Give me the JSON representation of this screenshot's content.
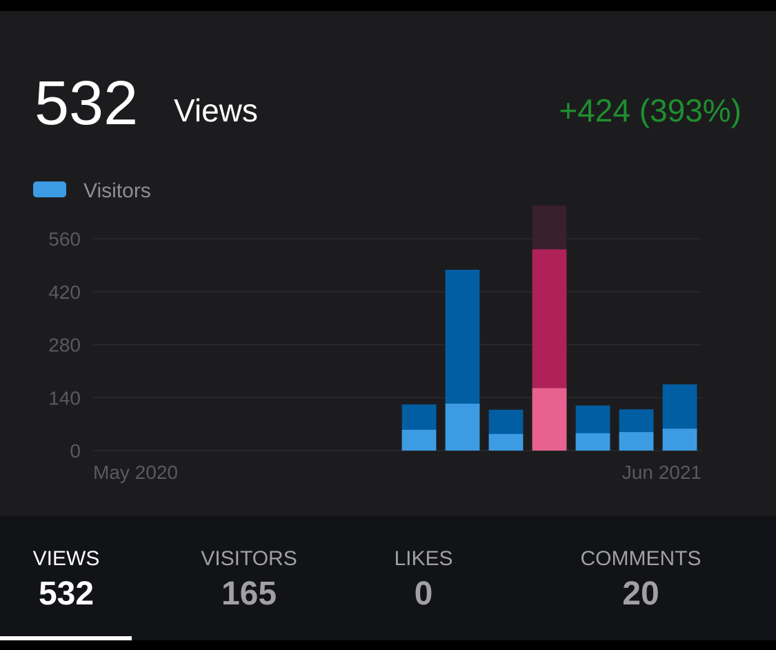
{
  "header": {
    "value": "532",
    "label": "Views",
    "change": "+424 (393%)"
  },
  "chart_data": {
    "type": "bar",
    "categories": [
      "May 2020",
      null,
      null,
      null,
      null,
      null,
      null,
      null,
      null,
      null,
      null,
      null,
      null,
      "Jun 2021"
    ],
    "series": [
      {
        "color": "#025ea3",
        "highlight_color": "#ae2159",
        "values": [
          0,
          0,
          0,
          0,
          0,
          0,
          0,
          122,
          478,
          108,
          532,
          119,
          109,
          175
        ]
      },
      {
        "name": "Visitors",
        "color": "#3d9be3",
        "highlight_color": "#e8628f",
        "values": [
          0,
          0,
          0,
          0,
          0,
          0,
          0,
          55,
          124,
          44,
          165,
          46,
          49,
          58
        ]
      }
    ],
    "selected": 10,
    "ylim": [
      0,
      560
    ],
    "yticks": [
      0,
      140,
      280,
      420,
      560
    ],
    "grid": true
  },
  "tabs": [
    {
      "label": "VIEWS",
      "value": "532",
      "active": true
    },
    {
      "label": "VISITORS",
      "value": "165",
      "active": false
    },
    {
      "label": "LIKES",
      "value": "0",
      "active": false
    },
    {
      "label": "COMMENTS",
      "value": "20",
      "active": false
    }
  ]
}
